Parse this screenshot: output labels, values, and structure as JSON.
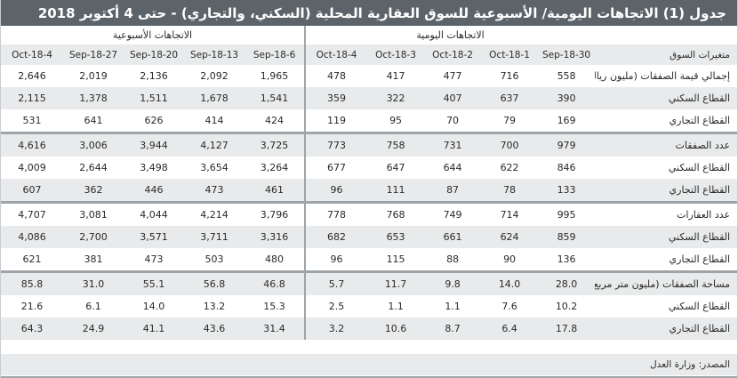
{
  "title": "جدول (1) الاتجاهات اليومية/ الأسبوعية للسوق العقارية المحلية (السكني، والتجاري) - حتى 4 أكتوبر 2018",
  "groups": {
    "daily": "الاتجاهات اليومية",
    "weekly": "الاتجاهات الأسبوعية"
  },
  "header": {
    "label": "متغيرات السوق",
    "daily": [
      "30-Sep-18",
      "1-Oct-18",
      "2-Oct-18",
      "3-Oct-18",
      "4-Oct-18"
    ],
    "weekly": [
      "6-Sep-18",
      "13-Sep-18",
      "20-Sep-18",
      "27-Sep-18",
      "4-Oct-18"
    ]
  },
  "rows": [
    {
      "label": "إجمالي قيمة الصفقات (مليون ريال)",
      "daily": [
        "558",
        "716",
        "477",
        "417",
        "478"
      ],
      "weekly": [
        "1,965",
        "2,092",
        "2,136",
        "2,019",
        "2,646"
      ]
    },
    {
      "label": "القطاع السكني",
      "daily": [
        "390",
        "637",
        "407",
        "322",
        "359"
      ],
      "weekly": [
        "1,541",
        "1,678",
        "1,511",
        "1,378",
        "2,115"
      ]
    },
    {
      "label": "القطاع التجاري",
      "daily": [
        "169",
        "79",
        "70",
        "95",
        "119"
      ],
      "weekly": [
        "424",
        "414",
        "626",
        "641",
        "531"
      ]
    },
    {
      "label": "عدد الصفقات",
      "daily": [
        "979",
        "700",
        "731",
        "758",
        "773"
      ],
      "weekly": [
        "3,725",
        "4,127",
        "3,944",
        "3,006",
        "4,616"
      ]
    },
    {
      "label": "القطاع السكني",
      "daily": [
        "846",
        "622",
        "644",
        "647",
        "677"
      ],
      "weekly": [
        "3,264",
        "3,654",
        "3,498",
        "2,644",
        "4,009"
      ]
    },
    {
      "label": "القطاع التجاري",
      "daily": [
        "133",
        "78",
        "87",
        "111",
        "96"
      ],
      "weekly": [
        "461",
        "473",
        "446",
        "362",
        "607"
      ]
    },
    {
      "label": "عدد العقارات",
      "daily": [
        "995",
        "714",
        "749",
        "768",
        "778"
      ],
      "weekly": [
        "3,796",
        "4,214",
        "4,044",
        "3,081",
        "4,707"
      ]
    },
    {
      "label": "القطاع السكني",
      "daily": [
        "859",
        "624",
        "661",
        "653",
        "682"
      ],
      "weekly": [
        "3,316",
        "3,711",
        "3,571",
        "2,700",
        "4,086"
      ]
    },
    {
      "label": "القطاع التجاري",
      "daily": [
        "136",
        "90",
        "88",
        "115",
        "96"
      ],
      "weekly": [
        "480",
        "503",
        "473",
        "381",
        "621"
      ]
    },
    {
      "label": "مساحة الصفقات (مليون متر مربع)",
      "daily": [
        "28.0",
        "14.0",
        "9.8",
        "11.7",
        "5.7"
      ],
      "weekly": [
        "46.8",
        "56.8",
        "55.1",
        "31.0",
        "85.8"
      ]
    },
    {
      "label": "القطاع السكني",
      "daily": [
        "10.2",
        "7.6",
        "1.1",
        "1.1",
        "2.5"
      ],
      "weekly": [
        "15.3",
        "13.2",
        "14.0",
        "6.1",
        "21.6"
      ]
    },
    {
      "label": "القطاع التجاري",
      "daily": [
        "17.8",
        "6.4",
        "8.7",
        "10.6",
        "3.2"
      ],
      "weekly": [
        "31.4",
        "43.6",
        "41.1",
        "24.9",
        "64.3"
      ]
    }
  ],
  "source": "المصدر: وزارة العدل"
}
